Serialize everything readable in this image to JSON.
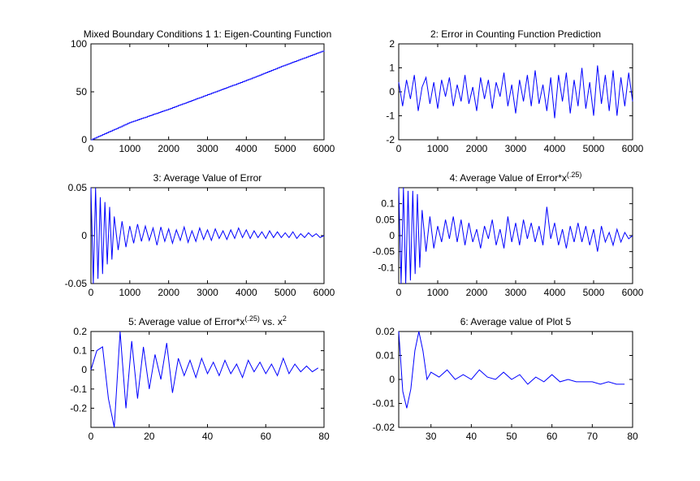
{
  "figure": {
    "background": "#ffffff",
    "line_color": "#0000ff",
    "axes_color": "#000000"
  },
  "chart_data": [
    {
      "type": "line",
      "title": "Mixed Boundary Conditions 1 1: Eigen-Counting Function",
      "xlim": [
        0,
        6000
      ],
      "ylim": [
        0,
        100
      ],
      "xticks": [
        0,
        1000,
        2000,
        3000,
        4000,
        5000,
        6000
      ],
      "xticklabels": [
        "0",
        "1000",
        "2000",
        "3000",
        "4000",
        "5000",
        "6000"
      ],
      "yticks": [
        0,
        50,
        100
      ],
      "yticklabels": [
        "0",
        "50",
        "100"
      ],
      "x": [
        0,
        1000,
        2000,
        3000,
        4000,
        5000,
        6000
      ],
      "y": [
        0,
        18,
        32,
        47,
        62,
        78,
        93
      ],
      "style": "staircase"
    },
    {
      "type": "line",
      "title": "2: Error in Counting Function Prediction",
      "xlim": [
        0,
        6000
      ],
      "ylim": [
        -2,
        2
      ],
      "xticks": [
        0,
        1000,
        2000,
        3000,
        4000,
        5000,
        6000
      ],
      "xticklabels": [
        "0",
        "1000",
        "2000",
        "3000",
        "4000",
        "5000",
        "6000"
      ],
      "yticks": [
        -2,
        -1,
        0,
        1,
        2
      ],
      "yticklabels": [
        "-2",
        "-1",
        "0",
        "1",
        "2"
      ],
      "x": [
        0,
        100,
        200,
        300,
        400,
        500,
        600,
        700,
        800,
        900,
        1000,
        1100,
        1200,
        1300,
        1400,
        1500,
        1600,
        1700,
        1800,
        1900,
        2000,
        2100,
        2200,
        2300,
        2400,
        2500,
        2600,
        2700,
        2800,
        2900,
        3000,
        3100,
        3200,
        3300,
        3400,
        3500,
        3600,
        3700,
        3800,
        3900,
        4000,
        4100,
        4200,
        4300,
        4400,
        4500,
        4600,
        4700,
        4800,
        4900,
        5000,
        5100,
        5200,
        5300,
        5400,
        5500,
        5600,
        5700,
        5800,
        5900,
        6000
      ],
      "y": [
        0.4,
        -0.6,
        0.5,
        -0.3,
        0.7,
        -0.8,
        0.2,
        0.6,
        -0.5,
        0.4,
        -0.7,
        0.5,
        -0.2,
        0.6,
        -0.6,
        0.3,
        -0.4,
        0.7,
        -0.5,
        0.2,
        -0.8,
        0.6,
        -0.3,
        0.5,
        -0.7,
        0.4,
        -0.2,
        0.8,
        -0.6,
        0.3,
        -0.9,
        0.5,
        -0.4,
        0.7,
        -0.6,
        0.9,
        -0.5,
        0.3,
        -0.8,
        0.6,
        -1.1,
        0.7,
        -0.4,
        0.8,
        -0.9,
        0.5,
        -0.6,
        1.0,
        -0.7,
        0.4,
        -1.0,
        1.1,
        -0.5,
        0.7,
        -0.8,
        0.9,
        -1.0,
        0.6,
        -0.6,
        0.8,
        -0.4
      ]
    },
    {
      "type": "line",
      "title": "3: Average Value of Error",
      "xlim": [
        0,
        6000
      ],
      "ylim": [
        -0.05,
        0.05
      ],
      "xticks": [
        0,
        1000,
        2000,
        3000,
        4000,
        5000,
        6000
      ],
      "xticklabels": [
        "0",
        "1000",
        "2000",
        "3000",
        "4000",
        "5000",
        "6000"
      ],
      "yticks": [
        -0.05,
        0,
        0.05
      ],
      "yticklabels": [
        "-0.05",
        "0",
        "0.05"
      ],
      "x": [
        0,
        60,
        120,
        180,
        240,
        300,
        360,
        420,
        480,
        540,
        600,
        700,
        800,
        900,
        1000,
        1100,
        1200,
        1300,
        1400,
        1500,
        1600,
        1700,
        1800,
        1900,
        2000,
        2100,
        2200,
        2300,
        2400,
        2500,
        2600,
        2700,
        2800,
        2900,
        3000,
        3100,
        3200,
        3300,
        3400,
        3500,
        3600,
        3700,
        3800,
        3900,
        4000,
        4100,
        4200,
        4300,
        4400,
        4500,
        4600,
        4700,
        4800,
        4900,
        5000,
        5100,
        5200,
        5300,
        5400,
        5500,
        5600,
        5700,
        5800,
        5900,
        6000
      ],
      "y": [
        0.05,
        -0.05,
        0.05,
        -0.045,
        0.04,
        -0.04,
        0.035,
        -0.03,
        0.03,
        -0.025,
        0.02,
        -0.015,
        0.015,
        -0.012,
        0.01,
        -0.008,
        0.012,
        -0.006,
        0.01,
        -0.005,
        0.008,
        -0.01,
        0.009,
        -0.006,
        0.007,
        -0.008,
        0.006,
        -0.005,
        0.009,
        -0.007,
        0.005,
        -0.006,
        0.008,
        -0.004,
        0.006,
        -0.005,
        0.007,
        -0.003,
        0.005,
        -0.004,
        0.006,
        -0.003,
        0.008,
        -0.002,
        0.006,
        -0.003,
        0.005,
        -0.002,
        0.004,
        -0.003,
        0.005,
        -0.002,
        0.004,
        -0.002,
        0.003,
        -0.002,
        0.004,
        -0.003,
        0.002,
        -0.002,
        0.003,
        -0.001,
        0.002,
        -0.002,
        0.0
      ]
    },
    {
      "type": "line",
      "title": "4: Average Value of Error*x^(.25)",
      "xlim": [
        0,
        6000
      ],
      "ylim": [
        -0.15,
        0.15
      ],
      "xticks": [
        0,
        1000,
        2000,
        3000,
        4000,
        5000,
        6000
      ],
      "xticklabels": [
        "0",
        "1000",
        "2000",
        "3000",
        "4000",
        "5000",
        "6000"
      ],
      "yticks": [
        -0.1,
        -0.05,
        0,
        0.05,
        0.1
      ],
      "yticklabels": [
        "-0.1",
        "-0.05",
        "0",
        "0.05",
        "0.1"
      ],
      "x": [
        0,
        60,
        120,
        180,
        240,
        300,
        360,
        420,
        480,
        540,
        600,
        700,
        800,
        900,
        1000,
        1100,
        1200,
        1300,
        1400,
        1500,
        1600,
        1700,
        1800,
        1900,
        2000,
        2100,
        2200,
        2300,
        2400,
        2500,
        2600,
        2700,
        2800,
        2900,
        3000,
        3100,
        3200,
        3300,
        3400,
        3500,
        3600,
        3700,
        3800,
        3900,
        4000,
        4100,
        4200,
        4300,
        4400,
        4500,
        4600,
        4700,
        4800,
        4900,
        5000,
        5100,
        5200,
        5300,
        5400,
        5500,
        5600,
        5700,
        5800,
        5900,
        6000
      ],
      "y": [
        0.15,
        -0.15,
        0.15,
        -0.15,
        0.14,
        -0.14,
        0.14,
        -0.12,
        0.13,
        -0.1,
        0.08,
        -0.05,
        0.06,
        -0.04,
        0.03,
        -0.02,
        0.05,
        -0.01,
        0.06,
        -0.02,
        0.05,
        -0.03,
        0.04,
        -0.02,
        0.02,
        -0.04,
        0.03,
        -0.01,
        0.05,
        -0.03,
        0.02,
        -0.04,
        0.06,
        -0.02,
        0.04,
        -0.03,
        0.05,
        -0.01,
        0.04,
        -0.02,
        0.03,
        -0.03,
        0.09,
        -0.01,
        0.04,
        -0.03,
        0.02,
        -0.04,
        0.03,
        -0.02,
        0.04,
        -0.02,
        0.03,
        -0.03,
        0.02,
        -0.05,
        0.03,
        -0.02,
        0.01,
        -0.03,
        0.02,
        -0.02,
        0.01,
        -0.01,
        0.0
      ]
    },
    {
      "type": "line",
      "title": "5: Average value of Error*x^(.25) vs. x^2",
      "xlim": [
        0,
        80
      ],
      "ylim": [
        -0.3,
        0.2
      ],
      "xticks": [
        0,
        20,
        40,
        60,
        80
      ],
      "xticklabels": [
        "0",
        "20",
        "40",
        "60",
        "80"
      ],
      "yticks": [
        -0.2,
        -0.1,
        0,
        0.1,
        0.2
      ],
      "yticklabels": [
        "-0.2",
        "-0.1",
        "0",
        "0.1",
        "0.2"
      ],
      "x": [
        0,
        2,
        4,
        6,
        8,
        10,
        12,
        14,
        16,
        18,
        20,
        22,
        24,
        26,
        28,
        30,
        32,
        34,
        36,
        38,
        40,
        42,
        44,
        46,
        48,
        50,
        52,
        54,
        56,
        58,
        60,
        62,
        64,
        66,
        68,
        70,
        72,
        74,
        76,
        78
      ],
      "y": [
        0.0,
        0.1,
        0.12,
        -0.15,
        -0.3,
        0.2,
        -0.2,
        0.15,
        -0.15,
        0.12,
        -0.1,
        0.08,
        -0.05,
        0.14,
        -0.12,
        0.06,
        -0.03,
        0.05,
        -0.04,
        0.06,
        -0.02,
        0.04,
        -0.03,
        0.05,
        -0.02,
        0.03,
        -0.04,
        0.05,
        -0.01,
        0.04,
        -0.02,
        0.03,
        -0.03,
        0.06,
        -0.02,
        0.03,
        -0.01,
        0.02,
        -0.01,
        0.01
      ]
    },
    {
      "type": "line",
      "title": "6: Average value of Plot 5",
      "xlim": [
        22,
        80
      ],
      "ylim": [
        -0.02,
        0.02
      ],
      "xticks": [
        30,
        40,
        50,
        60,
        70,
        80
      ],
      "xticklabels": [
        "30",
        "40",
        "50",
        "60",
        "70",
        "80"
      ],
      "yticks": [
        -0.02,
        -0.01,
        0,
        0.01,
        0.02
      ],
      "yticklabels": [
        "-0.02",
        "-0.01",
        "0",
        "0.01",
        "0.02"
      ],
      "x": [
        22,
        23,
        24,
        25,
        26,
        27,
        28,
        29,
        30,
        32,
        34,
        36,
        38,
        40,
        42,
        44,
        46,
        48,
        50,
        52,
        54,
        56,
        58,
        60,
        62,
        64,
        66,
        68,
        70,
        72,
        74,
        76,
        78
      ],
      "y": [
        0.02,
        -0.005,
        -0.012,
        -0.004,
        0.012,
        0.02,
        0.012,
        0.0,
        0.003,
        0.001,
        0.004,
        0.0,
        0.002,
        0.0,
        0.004,
        0.001,
        0.0,
        0.003,
        0.0,
        0.002,
        -0.002,
        0.001,
        -0.001,
        0.002,
        -0.001,
        0.0,
        -0.001,
        -0.001,
        -0.001,
        -0.002,
        -0.001,
        -0.002,
        -0.002
      ]
    }
  ]
}
